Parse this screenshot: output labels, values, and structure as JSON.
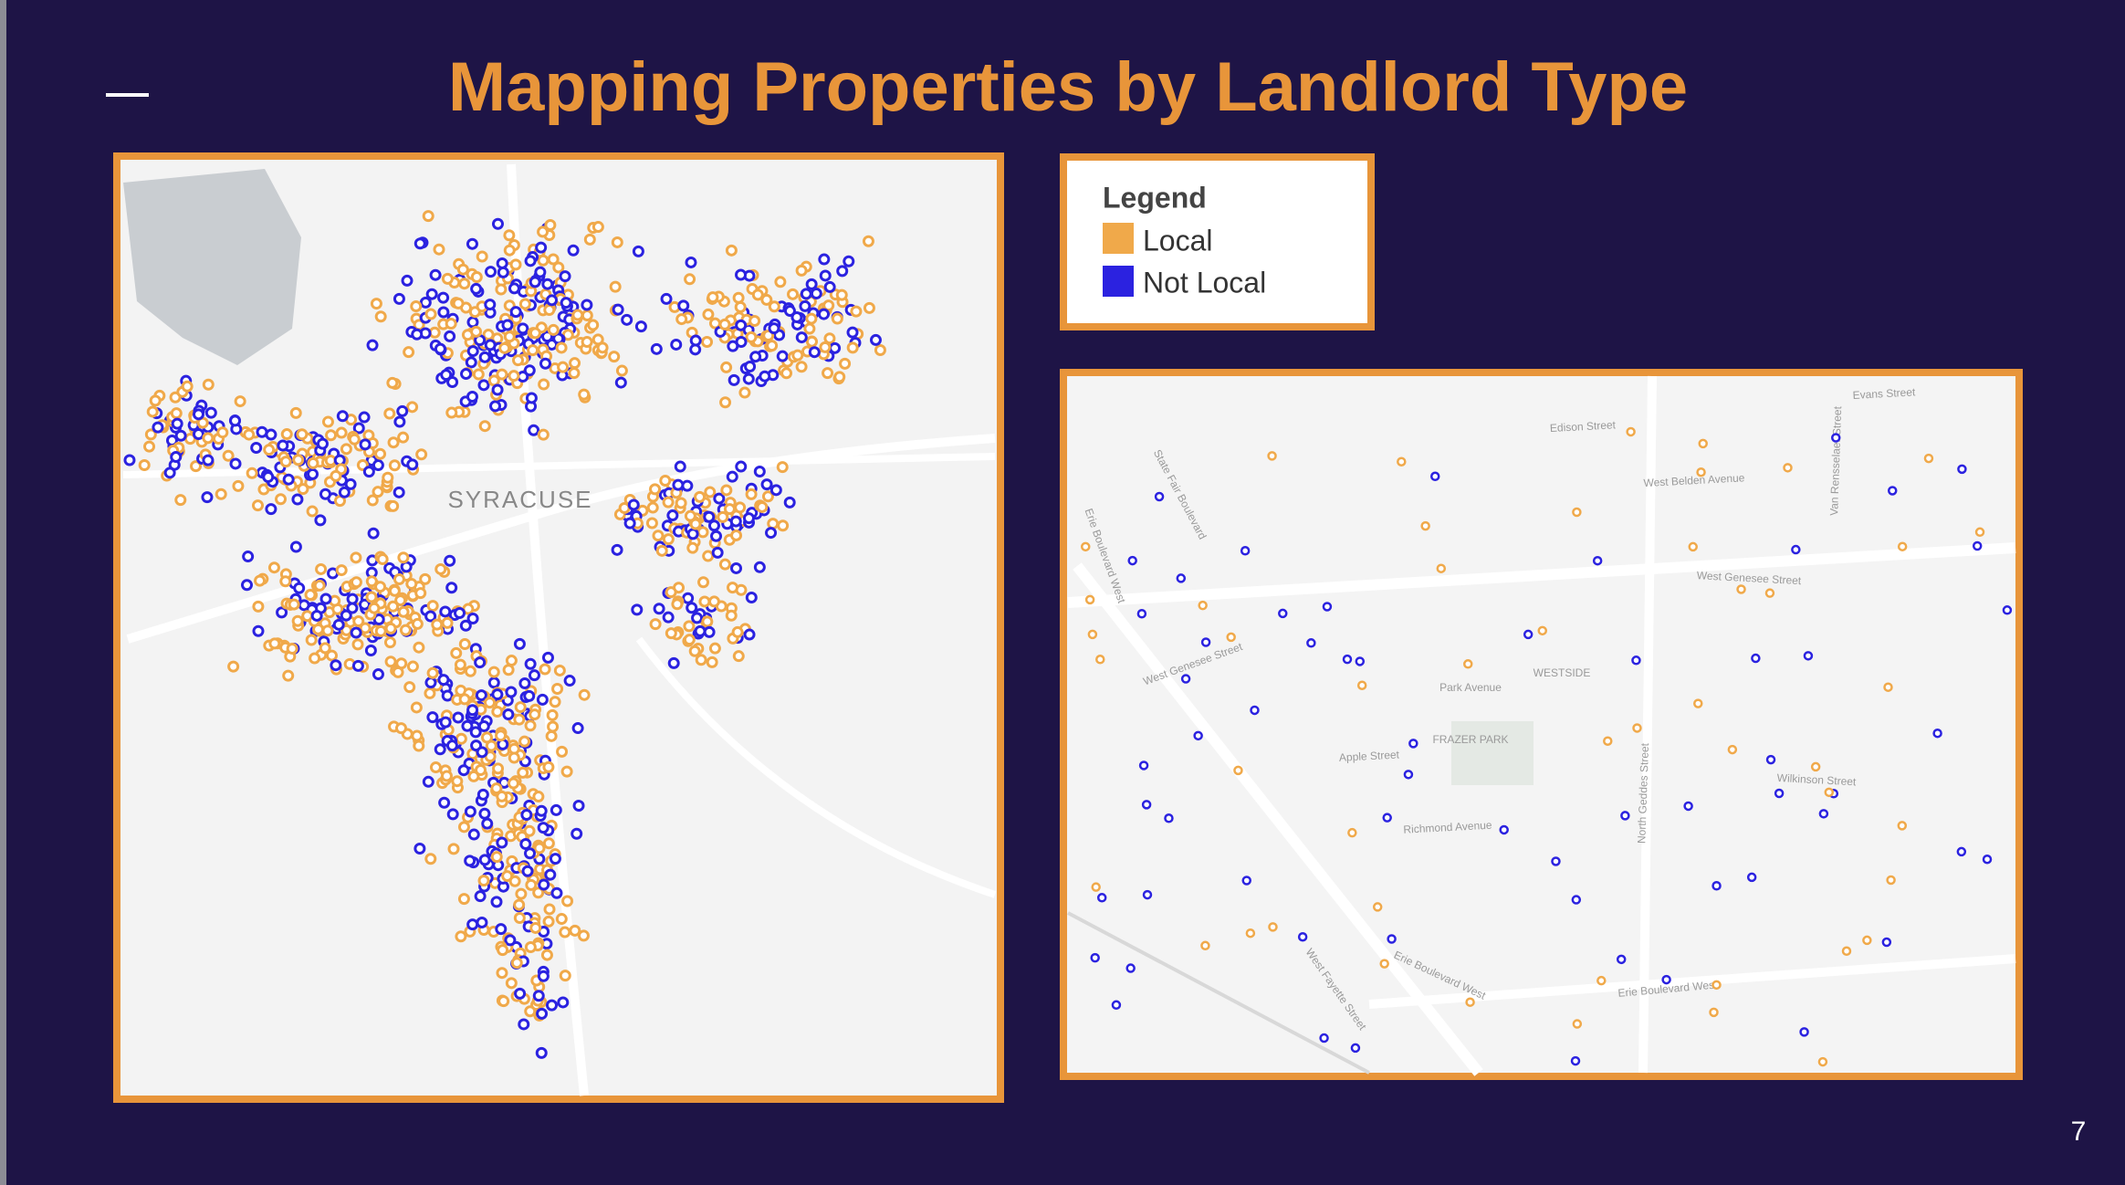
{
  "header": {
    "title": "Mapping Properties by Landlord Type"
  },
  "legend": {
    "title": "Legend",
    "items": [
      {
        "label": "Local",
        "color": "#f0a94a"
      },
      {
        "label": "Not Local",
        "color": "#2b22e0"
      }
    ]
  },
  "left_map": {
    "label": "SYRACUSE"
  },
  "right_map": {
    "labels": [
      "Evans Street",
      "Edison Street",
      "West Belden Avenue",
      "West Genesee Street",
      "West Genesee Street",
      "WESTSIDE",
      "Park Avenue",
      "FRAZER PARK",
      "Apple Street",
      "Richmond Avenue",
      "Wilkinson Street",
      "North Geddes Street",
      "Erie Boulevard West",
      "Erie Boulevard West",
      "West Fayette Street",
      "State Fair Boulevard",
      "Van Rensselaer Street",
      "Erie Boulevard West"
    ]
  },
  "footer": {
    "page_number": "7"
  }
}
